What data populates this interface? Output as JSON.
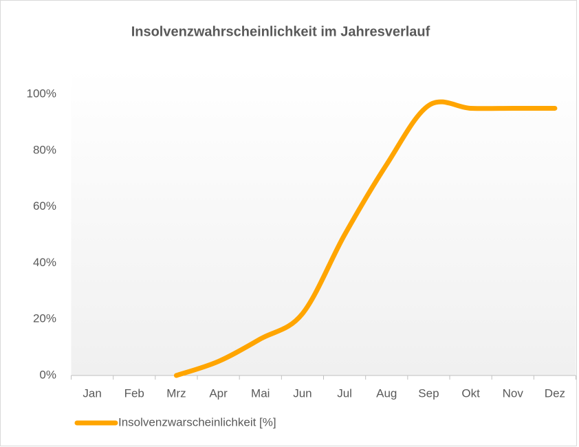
{
  "chart_data": {
    "type": "line",
    "title": "Insolvenzwahrscheinlichkeit im Jahresverlauf",
    "categories": [
      "Jan",
      "Feb",
      "Mrz",
      "Apr",
      "Mai",
      "Jun",
      "Jul",
      "Aug",
      "Sep",
      "Okt",
      "Nov",
      "Dez"
    ],
    "series": [
      {
        "name": "Insolvenzwarscheinlichkeit [%]",
        "color": "#ffa500",
        "values": [
          null,
          null,
          0,
          5,
          13,
          22,
          50,
          75,
          96,
          95,
          95,
          95
        ]
      }
    ],
    "ylim": [
      0,
      100
    ],
    "yticks": [
      {
        "value": 0,
        "label": "0%"
      },
      {
        "value": 20,
        "label": "20%"
      },
      {
        "value": 40,
        "label": "40%"
      },
      {
        "value": 60,
        "label": "60%"
      },
      {
        "value": 80,
        "label": "80%"
      },
      {
        "value": 100,
        "label": "100%"
      }
    ],
    "grid": false,
    "legend": "bottom-left",
    "smooth": true
  }
}
